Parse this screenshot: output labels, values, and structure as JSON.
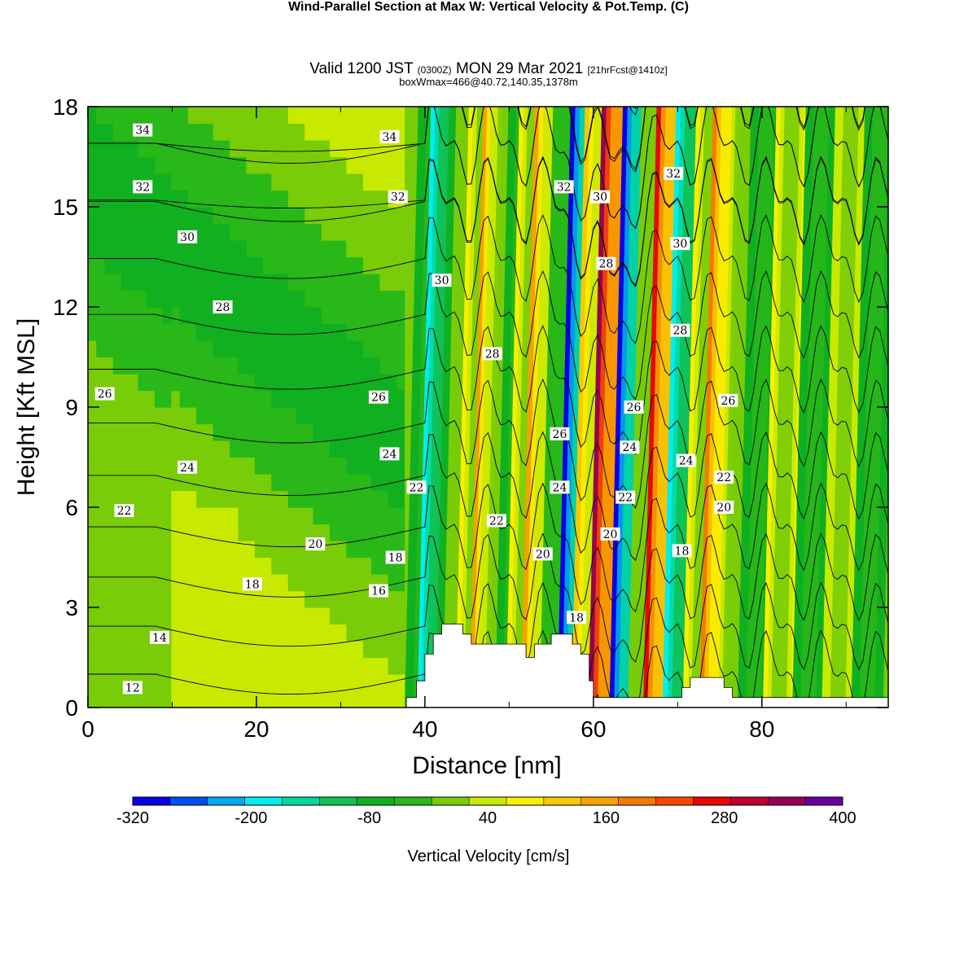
{
  "header": {
    "title": "Wind-Parallel Section at Max W: Vertical Velocity & Pot.Temp.",
    "title_suffix": "(C)",
    "valid_prefix": "Valid 1200 JST",
    "valid_utc": "(0300Z)",
    "valid_date": "MON 29 Mar 2021",
    "forecast": "[21hrFcst@1410z]",
    "box_info": "boxWmax=466@40.72,140.35,1378m"
  },
  "chart_data": {
    "type": "heatmap",
    "xlabel": "Distance [nm]",
    "ylabel": "Height [Kft MSL]",
    "xlim": [
      0,
      95
    ],
    "ylim": [
      0,
      18
    ],
    "x_ticks": [
      0,
      20,
      40,
      60,
      80
    ],
    "y_ticks": [
      0,
      3,
      6,
      9,
      12,
      15,
      18
    ],
    "colorbar": {
      "label": "Vertical Velocity [cm/s]",
      "tick_labels": [
        "-320",
        "-200",
        "-80",
        "40",
        "160",
        "280",
        "400"
      ],
      "tick_values": [
        -320,
        -200,
        -80,
        40,
        160,
        280,
        400
      ],
      "levels": [
        -320,
        -280,
        -240,
        -200,
        -160,
        -120,
        -80,
        -40,
        0,
        40,
        80,
        120,
        160,
        200,
        240,
        280,
        320,
        360,
        400
      ],
      "colors": [
        "#0a00e6",
        "#0050f0",
        "#00a8f0",
        "#00eeee",
        "#00d8a0",
        "#10c050",
        "#10b020",
        "#28b818",
        "#78cc08",
        "#c8ea00",
        "#f8f000",
        "#f8c800",
        "#f8a000",
        "#f87800",
        "#f84800",
        "#e80808",
        "#c00030",
        "#980050",
        "#6a00a0"
      ]
    },
    "vertical_velocity_bands": [
      {
        "x": 39.5,
        "w": 0.9,
        "value": -60
      },
      {
        "x": 41.0,
        "w": 0.9,
        "value": -180
      },
      {
        "x": 42.5,
        "w": 0.8,
        "value": -100
      },
      {
        "x": 44.0,
        "w": 0.9,
        "value": 0
      },
      {
        "x": 45.5,
        "w": 0.9,
        "value": 80
      },
      {
        "x": 47.0,
        "w": 0.8,
        "value": 160
      },
      {
        "x": 48.5,
        "w": 0.9,
        "value": 40
      },
      {
        "x": 50.0,
        "w": 0.8,
        "value": -60
      },
      {
        "x": 51.5,
        "w": 0.9,
        "value": 80
      },
      {
        "x": 53.5,
        "w": 1.0,
        "value": 160
      },
      {
        "x": 55.5,
        "w": 0.9,
        "value": -40
      },
      {
        "x": 57.8,
        "w": 1.0,
        "value": -300
      },
      {
        "x": 59.5,
        "w": 1.0,
        "value": 120
      },
      {
        "x": 61.5,
        "w": 1.0,
        "value": 360
      },
      {
        "x": 64.0,
        "w": 1.0,
        "value": -320
      },
      {
        "x": 66.0,
        "w": 0.9,
        "value": 0
      },
      {
        "x": 68.0,
        "w": 1.0,
        "value": 280
      },
      {
        "x": 70.3,
        "w": 1.0,
        "value": -200
      },
      {
        "x": 72.5,
        "w": 0.9,
        "value": 80
      },
      {
        "x": 74.5,
        "w": 0.9,
        "value": 200
      },
      {
        "x": 76.5,
        "w": 0.8,
        "value": 40
      },
      {
        "x": 79.0,
        "w": 0.9,
        "value": -60
      },
      {
        "x": 82.0,
        "w": 0.9,
        "value": 80
      },
      {
        "x": 85.5,
        "w": 0.9,
        "value": -60
      },
      {
        "x": 89.0,
        "w": 0.9,
        "value": 60
      },
      {
        "x": 92.5,
        "w": 0.9,
        "value": -60
      }
    ],
    "terrain": [
      [
        37.8,
        0.3
      ],
      [
        39.0,
        0.3
      ],
      [
        39.0,
        0.8
      ],
      [
        40.0,
        0.8
      ],
      [
        40.0,
        1.6
      ],
      [
        41.0,
        1.6
      ],
      [
        41.0,
        2.2
      ],
      [
        42.0,
        2.2
      ],
      [
        42.0,
        2.5
      ],
      [
        44.5,
        2.5
      ],
      [
        44.5,
        2.2
      ],
      [
        45.5,
        2.2
      ],
      [
        45.5,
        1.9
      ],
      [
        52.0,
        1.9
      ],
      [
        52.0,
        1.5
      ],
      [
        53.0,
        1.5
      ],
      [
        53.0,
        1.9
      ],
      [
        55.0,
        1.9
      ],
      [
        55.0,
        2.2
      ],
      [
        57.5,
        2.2
      ],
      [
        57.5,
        1.9
      ],
      [
        58.5,
        1.9
      ],
      [
        58.5,
        1.6
      ],
      [
        59.5,
        1.6
      ],
      [
        59.5,
        0.8
      ],
      [
        60.0,
        0.8
      ],
      [
        60.0,
        0.3
      ],
      [
        70.5,
        0.3
      ],
      [
        70.5,
        0.6
      ],
      [
        71.5,
        0.6
      ],
      [
        71.5,
        0.9
      ],
      [
        75.5,
        0.9
      ],
      [
        75.5,
        0.6
      ],
      [
        76.5,
        0.6
      ],
      [
        76.5,
        0.3
      ],
      [
        95,
        0.3
      ]
    ],
    "potential_temperature_contours": {
      "unit": "C",
      "levels": [
        12,
        14,
        16,
        18,
        20,
        22,
        24,
        26,
        28,
        30,
        32,
        34
      ],
      "labels": [
        {
          "text": "34",
          "x": 6.5,
          "y": 17.3
        },
        {
          "text": "34",
          "x": 35.8,
          "y": 17.1
        },
        {
          "text": "32",
          "x": 6.5,
          "y": 15.6
        },
        {
          "text": "32",
          "x": 36.8,
          "y": 15.3
        },
        {
          "text": "32",
          "x": 56.5,
          "y": 15.6
        },
        {
          "text": "32",
          "x": 69.5,
          "y": 16.0
        },
        {
          "text": "30",
          "x": 11.8,
          "y": 14.1
        },
        {
          "text": "30",
          "x": 42.0,
          "y": 12.8
        },
        {
          "text": "30",
          "x": 60.8,
          "y": 15.3
        },
        {
          "text": "30",
          "x": 70.3,
          "y": 13.9
        },
        {
          "text": "28",
          "x": 16.0,
          "y": 12.0
        },
        {
          "text": "28",
          "x": 48.0,
          "y": 10.6
        },
        {
          "text": "28",
          "x": 61.5,
          "y": 13.3
        },
        {
          "text": "28",
          "x": 70.3,
          "y": 11.3
        },
        {
          "text": "26",
          "x": 2.0,
          "y": 9.4
        },
        {
          "text": "26",
          "x": 34.5,
          "y": 9.3
        },
        {
          "text": "26",
          "x": 56.0,
          "y": 8.2
        },
        {
          "text": "26",
          "x": 64.8,
          "y": 9.0
        },
        {
          "text": "26",
          "x": 76.0,
          "y": 9.2
        },
        {
          "text": "24",
          "x": 11.8,
          "y": 7.2
        },
        {
          "text": "24",
          "x": 35.8,
          "y": 7.6
        },
        {
          "text": "24",
          "x": 56.0,
          "y": 6.6
        },
        {
          "text": "24",
          "x": 64.3,
          "y": 7.8
        },
        {
          "text": "24",
          "x": 71.0,
          "y": 7.4
        },
        {
          "text": "22",
          "x": 4.3,
          "y": 5.9
        },
        {
          "text": "22",
          "x": 39.0,
          "y": 6.6
        },
        {
          "text": "22",
          "x": 48.5,
          "y": 5.6
        },
        {
          "text": "22",
          "x": 63.8,
          "y": 6.3
        },
        {
          "text": "22",
          "x": 75.5,
          "y": 6.9
        },
        {
          "text": "20",
          "x": 27.0,
          "y": 4.9
        },
        {
          "text": "20",
          "x": 54.0,
          "y": 4.6
        },
        {
          "text": "20",
          "x": 62.0,
          "y": 5.2
        },
        {
          "text": "20",
          "x": 75.5,
          "y": 6.0
        },
        {
          "text": "18",
          "x": 19.5,
          "y": 3.7
        },
        {
          "text": "18",
          "x": 36.5,
          "y": 4.5
        },
        {
          "text": "18",
          "x": 58.0,
          "y": 2.7
        },
        {
          "text": "18",
          "x": 70.5,
          "y": 4.7
        },
        {
          "text": "16",
          "x": 34.5,
          "y": 3.5
        },
        {
          "text": "14",
          "x": 8.5,
          "y": 2.1
        },
        {
          "text": "12",
          "x": 5.3,
          "y": 0.6
        }
      ]
    }
  }
}
